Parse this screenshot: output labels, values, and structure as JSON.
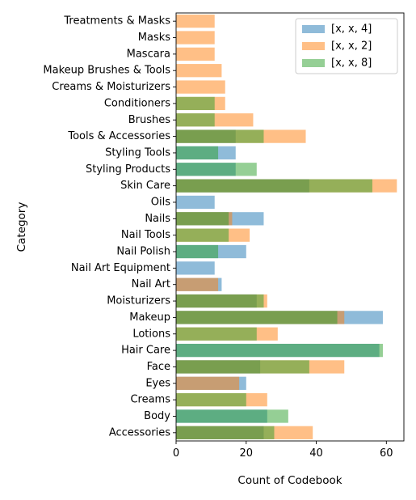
{
  "chart_data": {
    "type": "bar",
    "orientation": "horizontal",
    "title": "",
    "xlabel": "Count of Codebook",
    "ylabel": "Category",
    "xlim": [
      0,
      65
    ],
    "xticks": [
      0,
      20,
      40,
      60
    ],
    "grid": false,
    "legend_position": "top-right",
    "categories": [
      "Accessories",
      "Body",
      "Creams",
      "Eyes",
      "Face",
      "Hair Care",
      "Lotions",
      "Makeup",
      "Moisturizers",
      "Nail Art",
      "Nail Art Equipment",
      "Nail Polish",
      "Nail Tools",
      "Nails",
      "Oils",
      "Skin Care",
      "Styling Products",
      "Styling Tools",
      "Tools & Accessories",
      "Brushes",
      "Conditioners",
      "Creams & Moisturizers",
      "Makeup Brushes & Tools",
      "Mascara",
      "Masks",
      "Treatments & Masks"
    ],
    "series": [
      {
        "name": "[x, x, 4]",
        "color": "#1f77b4",
        "values": [
          25,
          26,
          0,
          20,
          24,
          58,
          0,
          59,
          23,
          13,
          11,
          20,
          0,
          25,
          11,
          38,
          17,
          17,
          17,
          0,
          0,
          0,
          0,
          0,
          0,
          0
        ]
      },
      {
        "name": "[x, x, 2]",
        "color": "#ff7f0e",
        "values": [
          39,
          0,
          26,
          18,
          48,
          0,
          29,
          48,
          26,
          12,
          0,
          0,
          21,
          16,
          0,
          63,
          0,
          0,
          37,
          22,
          14,
          14,
          13,
          11,
          11,
          11
        ]
      },
      {
        "name": "[x, x, 8]",
        "color": "#2ca02c",
        "values": [
          28,
          32,
          20,
          0,
          38,
          59,
          23,
          46,
          25,
          0,
          0,
          12,
          15,
          15,
          0,
          56,
          23,
          12,
          25,
          11,
          11,
          0,
          0,
          0,
          0,
          0
        ]
      }
    ]
  }
}
